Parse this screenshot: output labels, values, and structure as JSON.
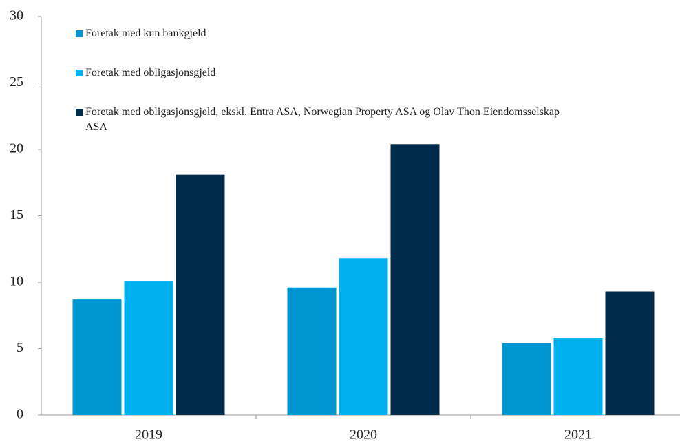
{
  "chart_data": {
    "type": "bar",
    "categories": [
      "2019",
      "2020",
      "2021"
    ],
    "series": [
      {
        "name": "Foretak med kun bankgjeld",
        "color": "#0095d0",
        "values": [
          8.7,
          9.6,
          5.4
        ]
      },
      {
        "name": "Foretak med obligasjonsgjeld",
        "color": "#00b0f0",
        "values": [
          10.1,
          11.8,
          5.8
        ]
      },
      {
        "name": "Foretak med obligasjonsgjeld, ekskl. Entra ASA, Norwegian Property ASA og Olav Thon Eiendomsselskap ASA",
        "color": "#002b4a",
        "values": [
          18.1,
          20.4,
          9.3
        ]
      }
    ],
    "ylim": [
      0,
      30
    ],
    "yticks": [
      0,
      5,
      10,
      15,
      20,
      25,
      30
    ],
    "grid": false,
    "legend": "top-left"
  }
}
